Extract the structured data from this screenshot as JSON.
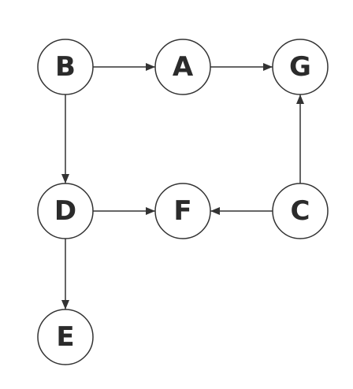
{
  "diagram": {
    "type": "directed-graph",
    "nodes": [
      {
        "id": "B",
        "label": "B"
      },
      {
        "id": "A",
        "label": "A"
      },
      {
        "id": "G",
        "label": "G"
      },
      {
        "id": "D",
        "label": "D"
      },
      {
        "id": "F",
        "label": "F"
      },
      {
        "id": "C",
        "label": "C"
      },
      {
        "id": "E",
        "label": "E"
      }
    ],
    "edges": [
      {
        "from": "B",
        "to": "A"
      },
      {
        "from": "A",
        "to": "G"
      },
      {
        "from": "B",
        "to": "D"
      },
      {
        "from": "D",
        "to": "F"
      },
      {
        "from": "C",
        "to": "F"
      },
      {
        "from": "C",
        "to": "G"
      },
      {
        "from": "D",
        "to": "E"
      }
    ],
    "colors": {
      "stroke": "#333333",
      "text": "#2b2b2b",
      "background": "#ffffff"
    }
  }
}
